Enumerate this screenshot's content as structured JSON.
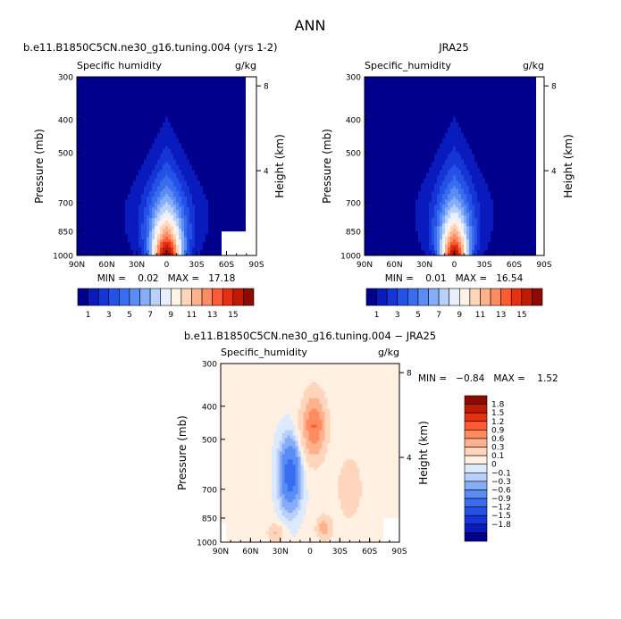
{
  "title": "ANN",
  "chart_data": [
    {
      "type": "contour",
      "title": "b.e11.B1850C5CN.ne30_g16.tuning.004 (yrs 1-2)",
      "left_label": "Specific humidity",
      "right_label": "g/kg",
      "ylabel": "Pressure (mb)",
      "ylabel_right": "Height (km)",
      "x_ticks": [
        "90N",
        "60N",
        "30N",
        "0",
        "30S",
        "60S",
        "90S"
      ],
      "y_ticks": [
        300,
        400,
        500,
        700,
        850,
        1000
      ],
      "y_ticks_right": [
        4,
        8
      ],
      "stats": "MIN =    0.02   MAX =   17.18",
      "min": 0.02,
      "max": 17.18,
      "colorbar_labels": [
        "1",
        "3",
        "5",
        "7",
        "9",
        "11",
        "13",
        "15"
      ],
      "field": {
        "base": 0.8,
        "peak": 17.5,
        "width_deg": 26,
        "press_top": 350,
        "press_span": 600
      }
    },
    {
      "type": "contour",
      "title": "JRA25",
      "left_label": "Specific_humidity",
      "right_label": "g/kg",
      "ylabel": "Pressure (mb)",
      "ylabel_right": "Height (km)",
      "x_ticks": [
        "90N",
        "60N",
        "30N",
        "0",
        "30S",
        "60S",
        "90S"
      ],
      "y_ticks": [
        300,
        400,
        500,
        700,
        850,
        1000
      ],
      "y_ticks_right": [
        4,
        8
      ],
      "stats": "MIN =    0.01   MAX =   16.54",
      "min": 0.01,
      "max": 16.54,
      "colorbar_labels": [
        "1",
        "3",
        "5",
        "7",
        "9",
        "11",
        "13",
        "15"
      ],
      "field": {
        "base": 0.8,
        "peak": 16.8,
        "width_deg": 24,
        "press_top": 350,
        "press_span": 600
      }
    },
    {
      "type": "contour",
      "title": "b.e11.B1850C5CN.ne30_g16.tuning.004 − JRA25",
      "left_label": "Specific_humidity",
      "right_label": "g/kg",
      "ylabel": "Pressure (mb)",
      "ylabel_right": "Height (km)",
      "x_ticks": [
        "90N",
        "60N",
        "30N",
        "0",
        "30S",
        "60S",
        "90S"
      ],
      "y_ticks": [
        300,
        400,
        500,
        700,
        850,
        1000
      ],
      "y_ticks_right": [
        4,
        8
      ],
      "stats": "MIN =   −0.84   MAX =    1.52",
      "min": -0.84,
      "max": 1.52,
      "colorbar_labels": [
        "1.8",
        "1.5",
        "1.2",
        "0.9",
        "0.6",
        "0.3",
        "0.1",
        "0",
        "−0.1",
        "−0.3",
        "−0.6",
        "−0.9",
        "−1.2",
        "−1.5",
        "−1.8"
      ],
      "levels": [
        -1.8,
        -1.5,
        -1.2,
        -0.9,
        -0.6,
        -0.3,
        -0.1,
        0,
        0.1,
        0.3,
        0.6,
        0.9,
        1.2,
        1.5,
        1.8
      ]
    }
  ],
  "colors": {
    "abs_scale": [
      "#00008c",
      "#0a1bbd",
      "#1535d6",
      "#2452e6",
      "#3a6cf0",
      "#5a8cf5",
      "#86aef8",
      "#b8d0fb",
      "#e8f0ff",
      "#fff2e6",
      "#ffd6bc",
      "#ffb28c",
      "#ff8c60",
      "#ff5a32",
      "#e6300f",
      "#c01a05",
      "#8c0a00"
    ],
    "diff_scale": [
      "#00008c",
      "#0a1bbd",
      "#1535d6",
      "#2452e6",
      "#3a6cf0",
      "#5a8cf5",
      "#86aef8",
      "#b8d0fb",
      "#dde9fd",
      "#fff0e2",
      "#ffd6bc",
      "#ffb28c",
      "#ff8c60",
      "#ff5a32",
      "#e6300f",
      "#c01a05",
      "#8c0a00"
    ]
  }
}
